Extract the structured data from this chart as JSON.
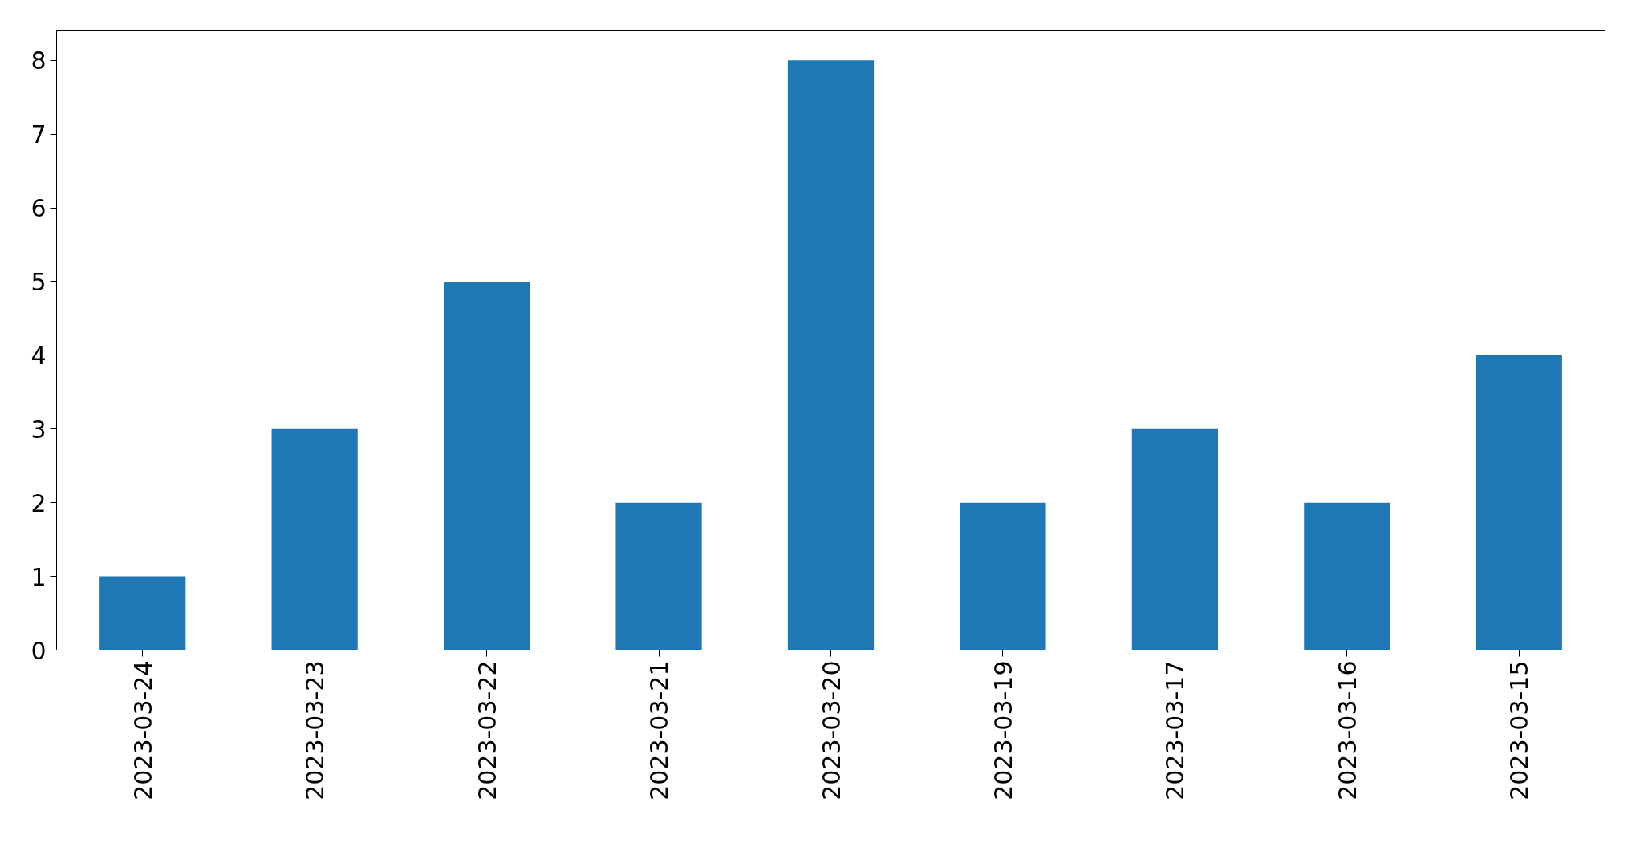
{
  "chart_data": {
    "type": "bar",
    "categories": [
      "2023-03-24",
      "2023-03-23",
      "2023-03-22",
      "2023-03-21",
      "2023-03-20",
      "2023-03-19",
      "2023-03-17",
      "2023-03-16",
      "2023-03-15"
    ],
    "values": [
      1,
      3,
      5,
      2,
      8,
      2,
      3,
      2,
      4
    ],
    "color": "#1f77b4",
    "ylim": [
      0,
      8.4
    ],
    "yticks": [
      0,
      1,
      2,
      3,
      4,
      5,
      6,
      7,
      8
    ],
    "grid": false
  }
}
